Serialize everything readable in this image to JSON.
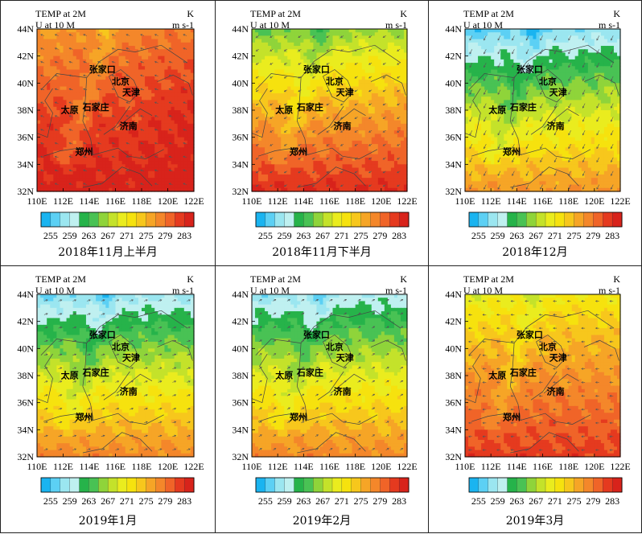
{
  "chart_data": {
    "type": "heatmap",
    "variable_label": "TEMP at 2M",
    "variable_unit": "K",
    "vector_label": "U at 10 M",
    "vector_unit": "m s-1",
    "x_ticks": [
      "110E",
      "112E",
      "114E",
      "116E",
      "118E",
      "120E",
      "122E"
    ],
    "y_ticks": [
      "44N",
      "42N",
      "40N",
      "38N",
      "36N",
      "34N",
      "32N"
    ],
    "xlim": [
      110,
      122
    ],
    "ylim": [
      32,
      44
    ],
    "colorbar": {
      "labels": [
        "255",
        "259",
        "263",
        "267",
        "271",
        "275",
        "279",
        "283"
      ],
      "range": [
        253,
        285
      ],
      "colors": [
        "#1ab4f0",
        "#5cd0f4",
        "#9be6f0",
        "#bff0f0",
        "#26b34a",
        "#49c254",
        "#8fd43a",
        "#c4e22a",
        "#eaec1e",
        "#f6e20e",
        "#f7c71c",
        "#f6a526",
        "#f4872a",
        "#f06428",
        "#e53a1f",
        "#d8231b"
      ]
    },
    "cities": [
      {
        "name": "张家口",
        "lon": 115.0,
        "lat": 40.8
      },
      {
        "name": "北京",
        "lon": 116.4,
        "lat": 39.9
      },
      {
        "name": "天津",
        "lon": 117.2,
        "lat": 39.1
      },
      {
        "name": "石家庄",
        "lon": 114.5,
        "lat": 38.0
      },
      {
        "name": "太原",
        "lon": 112.5,
        "lat": 37.8
      },
      {
        "name": "济南",
        "lon": 117.0,
        "lat": 36.6
      },
      {
        "name": "郑州",
        "lon": 113.6,
        "lat": 34.7
      }
    ],
    "panels": [
      {
        "title": "2018年11月上半月",
        "north": 278,
        "south": 284,
        "mountain": -3,
        "east": 2,
        "wind": [
          -0.6,
          0.2
        ]
      },
      {
        "title": "2018年11月下半月",
        "north": 266,
        "south": 283,
        "mountain": -3,
        "east": 1,
        "wind": [
          -0.5,
          -0.3
        ]
      },
      {
        "title": "2018年12月",
        "north": 257,
        "south": 277,
        "mountain": -3,
        "east": 1,
        "wind": [
          -0.4,
          -0.8
        ]
      },
      {
        "title": "2019年1月",
        "north": 258,
        "south": 278,
        "mountain": -3,
        "east": 0,
        "wind": [
          0.6,
          0.2
        ]
      },
      {
        "title": "2019年2月",
        "north": 259,
        "south": 278,
        "mountain": -3,
        "east": 0,
        "wind": [
          0.5,
          0.3
        ]
      },
      {
        "title": "2019年3月",
        "north": 271,
        "south": 282,
        "mountain": -3,
        "east": 0,
        "wind": [
          -0.6,
          0.0
        ]
      }
    ]
  }
}
